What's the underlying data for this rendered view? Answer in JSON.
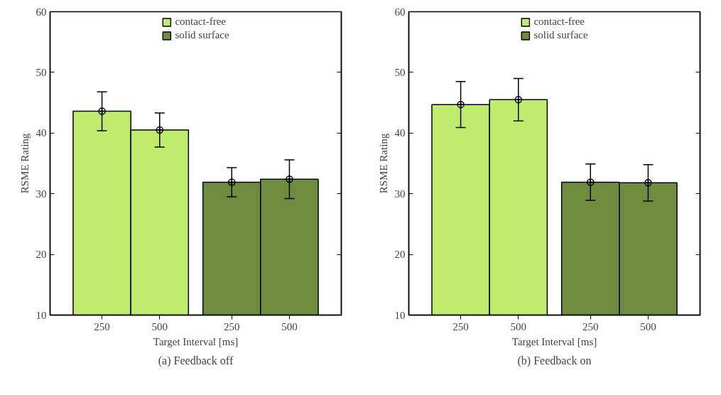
{
  "chart_data": [
    {
      "type": "bar",
      "title": "(a) Feedback off",
      "xlabel": "Target Interval [ms]",
      "ylabel": "RSME Rating",
      "categories": [
        "250",
        "500",
        "250",
        "500"
      ],
      "ylim": [
        10,
        60
      ],
      "yticks": [
        10,
        20,
        30,
        40,
        50,
        60
      ],
      "grid": false,
      "legend": "top",
      "series": [
        {
          "name": "contact-free",
          "color": "#bfec6a",
          "values": [
            43.6,
            40.5,
            null,
            null
          ]
        },
        {
          "name": "solid surface",
          "color": "#6f8c3d",
          "values": [
            null,
            null,
            31.9,
            32.4
          ]
        },
        {
          "type": "scatter",
          "marker": "circle",
          "color": "#000000",
          "values": [
            43.6,
            40.5,
            31.9,
            32.4
          ],
          "errors": [
            3.2,
            2.8,
            2.4,
            3.2
          ]
        }
      ]
    },
    {
      "type": "bar",
      "title": "(b) Feedback on",
      "xlabel": "Target Interval [ms]",
      "ylabel": "RSME Rating",
      "categories": [
        "250",
        "500",
        "250",
        "500"
      ],
      "ylim": [
        10,
        60
      ],
      "yticks": [
        10,
        20,
        30,
        40,
        50,
        60
      ],
      "grid": false,
      "legend": "top",
      "series": [
        {
          "name": "contact-free",
          "color": "#bfec6a",
          "values": [
            44.7,
            45.5,
            null,
            null
          ]
        },
        {
          "name": "solid surface",
          "color": "#6f8c3d",
          "values": [
            null,
            null,
            31.9,
            31.8
          ]
        },
        {
          "type": "scatter",
          "marker": "circle",
          "color": "#000000",
          "values": [
            44.7,
            45.5,
            31.9,
            31.8
          ],
          "errors": [
            3.8,
            3.5,
            3.0,
            3.0
          ]
        }
      ]
    }
  ]
}
